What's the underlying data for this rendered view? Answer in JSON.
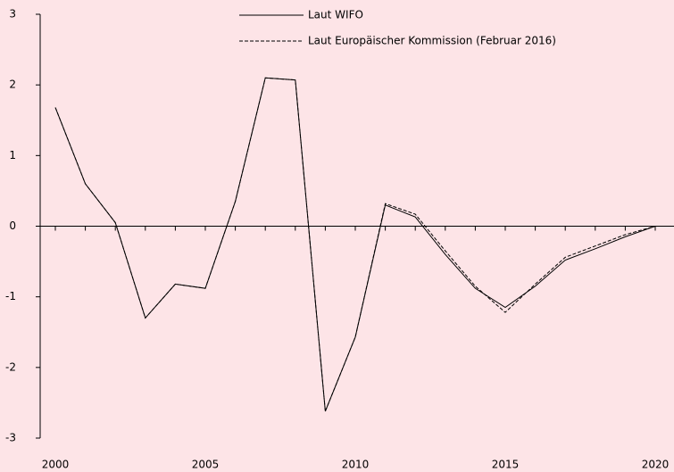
{
  "chart_data": {
    "type": "line",
    "x": [
      2000,
      2001,
      2002,
      2003,
      2004,
      2005,
      2006,
      2007,
      2008,
      2009,
      2010,
      2011,
      2012,
      2013,
      2014,
      2015,
      2016,
      2017,
      2018,
      2019,
      2020
    ],
    "series": [
      {
        "name": "Laut WIFO",
        "color": "#000000",
        "dash": false,
        "values": [
          1.68,
          0.6,
          0.05,
          -1.3,
          -0.82,
          -0.88,
          0.35,
          2.1,
          2.07,
          -2.62,
          -1.57,
          0.3,
          0.13,
          -0.4,
          -0.88,
          -1.15,
          -0.85,
          -0.48,
          -0.32,
          -0.15,
          0
        ]
      },
      {
        "name": "Laut Europäischer Kommission (Februar 2016)",
        "color": "#000000",
        "dash": true,
        "values": [
          1.68,
          0.6,
          0.05,
          -1.3,
          -0.82,
          -0.88,
          0.35,
          2.1,
          2.07,
          -2.62,
          -1.57,
          0.32,
          0.17,
          -0.35,
          -0.85,
          -1.22,
          -0.82,
          -0.44,
          -0.28,
          -0.12,
          0
        ]
      }
    ],
    "xlim": [
      2000,
      2020
    ],
    "xticks": [
      2000,
      2005,
      2010,
      2015,
      2020
    ],
    "ylim": [
      -3,
      3
    ],
    "yticks": [
      -3,
      -2,
      -1,
      0,
      1,
      2,
      3
    ]
  }
}
